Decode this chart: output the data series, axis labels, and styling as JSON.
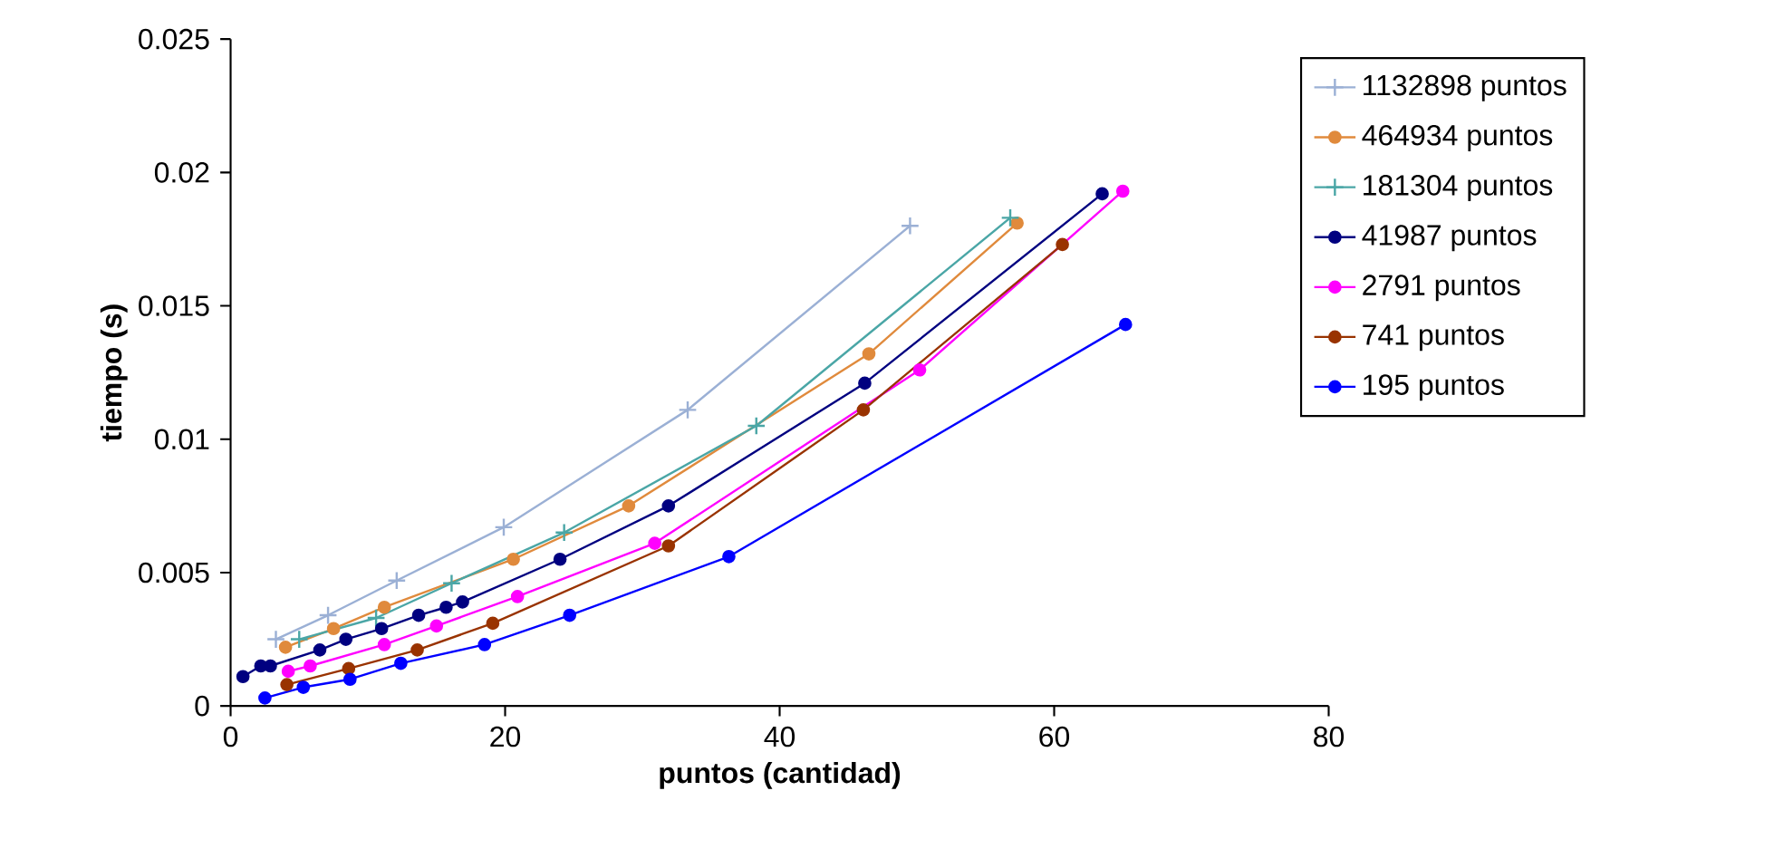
{
  "chart_data": {
    "type": "line",
    "xlabel": "puntos (cantidad)",
    "ylabel": "tiempo (s)",
    "xlim": [
      0,
      80
    ],
    "ylim": [
      0,
      0.025
    ],
    "xticks": [
      0,
      20,
      40,
      60,
      80
    ],
    "yticks": [
      0,
      0.005,
      0.01,
      0.015,
      0.02,
      0.025
    ],
    "grid": false,
    "legend": "right",
    "line_style": "solid",
    "series": [
      {
        "name": "1132898 puntos",
        "color": "#9bb0d5",
        "marker": "cross",
        "x": [
          3.3,
          7.1,
          12.1,
          19.9,
          33.3,
          49.5
        ],
        "values": [
          0.0025,
          0.0034,
          0.0047,
          0.0067,
          0.0111,
          0.018
        ]
      },
      {
        "name": "464934 puntos",
        "color": "#e08a3c",
        "marker": "circle",
        "x": [
          4.0,
          7.5,
          11.2,
          20.6,
          29.0,
          46.5,
          57.3
        ],
        "values": [
          0.0022,
          0.0029,
          0.0037,
          0.0055,
          0.0075,
          0.0132,
          0.0181
        ]
      },
      {
        "name": "181304 puntos",
        "color": "#4aa6a6",
        "marker": "cross",
        "x": [
          5.0,
          10.6,
          16.1,
          24.3,
          38.3,
          56.8
        ],
        "values": [
          0.0025,
          0.0033,
          0.0046,
          0.0065,
          0.0105,
          0.0183
        ]
      },
      {
        "name": "41987 puntos",
        "color": "#000080",
        "marker": "circle",
        "x": [
          0.9,
          2.2,
          2.9,
          6.5,
          8.4,
          11.0,
          13.7,
          15.7,
          16.9,
          24.0,
          31.9,
          46.2,
          63.5
        ],
        "values": [
          0.0011,
          0.0015,
          0.0015,
          0.0021,
          0.0025,
          0.0029,
          0.0034,
          0.0037,
          0.0039,
          0.0055,
          0.0075,
          0.0121,
          0.0192
        ]
      },
      {
        "name": "2791 puntos",
        "color": "#ff00ff",
        "marker": "circle",
        "x": [
          4.2,
          5.8,
          11.2,
          15.0,
          20.9,
          30.9,
          50.2,
          65.0
        ],
        "values": [
          0.0013,
          0.0015,
          0.0023,
          0.003,
          0.0041,
          0.0061,
          0.0126,
          0.0193
        ]
      },
      {
        "name": "741 puntos",
        "color": "#993300",
        "marker": "circle",
        "x": [
          4.1,
          8.6,
          13.6,
          19.1,
          31.9,
          46.1,
          60.6
        ],
        "values": [
          0.0008,
          0.0014,
          0.0021,
          0.0031,
          0.006,
          0.0111,
          0.0173
        ]
      },
      {
        "name": "195 puntos",
        "color": "#0000ff",
        "marker": "circle",
        "x": [
          2.5,
          5.3,
          8.7,
          12.4,
          18.5,
          24.7,
          36.3,
          65.2
        ],
        "values": [
          0.0003,
          0.0007,
          0.001,
          0.0016,
          0.0023,
          0.0034,
          0.0056,
          0.0143
        ]
      }
    ]
  }
}
